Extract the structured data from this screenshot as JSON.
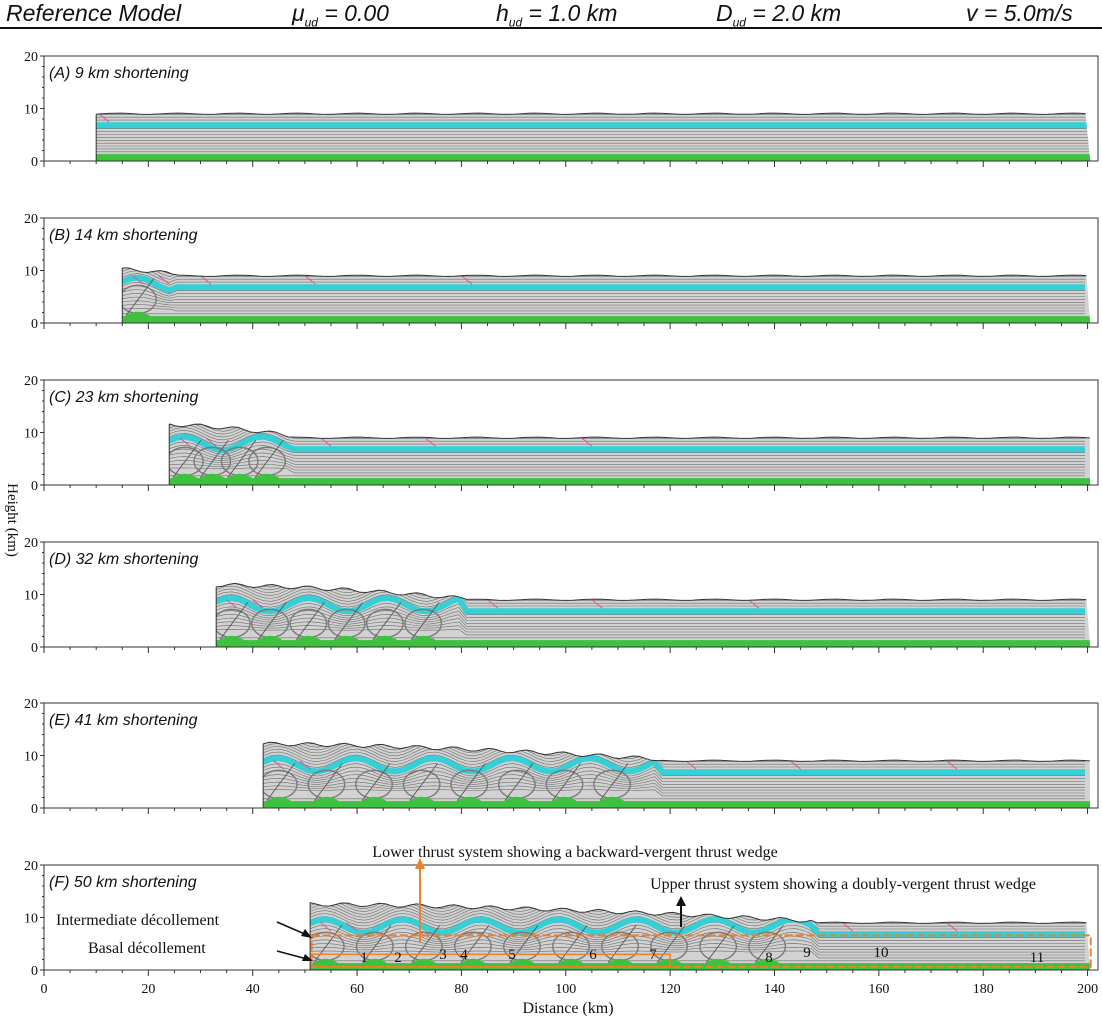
{
  "header": {
    "model": "Reference  Model",
    "mu_sym": "μ",
    "mu_sub": "ud",
    "mu_val": " = 0.00",
    "h_sym": "h",
    "h_sub": "ud",
    "h_val": " = 1.0 km",
    "d_sym": "D",
    "d_sub": "ud",
    "d_val": " = 2.0 km",
    "v_text": "v = 5.0m/s"
  },
  "axes": {
    "ylabel": "Height (km)",
    "xlabel": "Distance (km)",
    "y_ticks": [
      "0",
      "10",
      "20"
    ],
    "x_ticks": [
      "0",
      "20",
      "40",
      "60",
      "80",
      "100",
      "120",
      "140",
      "160",
      "180",
      "200"
    ],
    "xlim": [
      0,
      202
    ],
    "ylim": [
      0,
      20
    ]
  },
  "panels": [
    {
      "label": "(A)   9 km shortening",
      "shortening_km": 9
    },
    {
      "label": "(B)   14 km shortening",
      "shortening_km": 14
    },
    {
      "label": "(C)   23 km shortening",
      "shortening_km": 23
    },
    {
      "label": "(D)   32 km shortening",
      "shortening_km": 32
    },
    {
      "label": "(E)   41 km shortening",
      "shortening_km": 41
    },
    {
      "label": "(F)   50 km shortening",
      "shortening_km": 50
    }
  ],
  "annotations": {
    "lower_system": "Lower thrust system showing a backward-vergent thrust wedge",
    "upper_system": "Upper thrust system showing a doubly-vergent thrust wedge",
    "intermediate": "Intermediate décollement",
    "basal": "Basal décollement",
    "thrust_numbers": [
      "1",
      "2",
      "3",
      "4",
      "5",
      "6",
      "7",
      "8",
      "9",
      "10",
      "11"
    ]
  },
  "colors": {
    "layer_grey": "#d2d2d2",
    "layer_line": "#6e6e6e",
    "cyan_layer": "#35cfd6",
    "green_base": "#3ec23e",
    "fault_pink": "#e0509a",
    "orange": "#ef7f2a",
    "frame": "#333333"
  }
}
